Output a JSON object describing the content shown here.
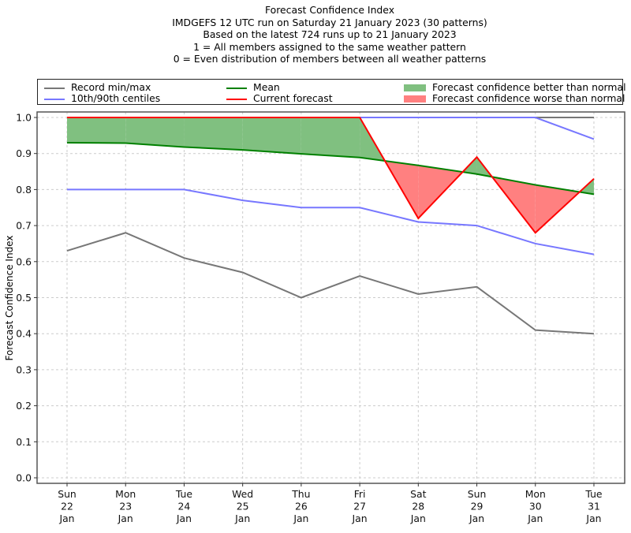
{
  "chart_data": {
    "type": "line",
    "title_lines": [
      "Forecast Confidence Index",
      "IMDGEFS 12 UTC run on Saturday 21 January 2023 (30 patterns)",
      "Based on the latest 724 runs up to 21 January 2023",
      "1 = All members assigned to the same weather pattern",
      "0 = Even distribution of members between all weather patterns"
    ],
    "xlabel": "",
    "ylabel": "Forecast Confidence Index",
    "ylim": [
      0.0,
      1.0
    ],
    "yticks": [
      "0.0",
      "0.1",
      "0.2",
      "0.3",
      "0.4",
      "0.5",
      "0.6",
      "0.7",
      "0.8",
      "0.9",
      "1.0"
    ],
    "grid": true,
    "legend_position": "top, above plot",
    "categories": [
      {
        "day": "Sun",
        "date": "22",
        "month": "Jan"
      },
      {
        "day": "Mon",
        "date": "23",
        "month": "Jan"
      },
      {
        "day": "Tue",
        "date": "24",
        "month": "Jan"
      },
      {
        "day": "Wed",
        "date": "25",
        "month": "Jan"
      },
      {
        "day": "Thu",
        "date": "26",
        "month": "Jan"
      },
      {
        "day": "Fri",
        "date": "27",
        "month": "Jan"
      },
      {
        "day": "Sat",
        "date": "28",
        "month": "Jan"
      },
      {
        "day": "Sun",
        "date": "29",
        "month": "Jan"
      },
      {
        "day": "Mon",
        "date": "30",
        "month": "Jan"
      },
      {
        "day": "Tue",
        "date": "31",
        "month": "Jan"
      }
    ],
    "series": [
      {
        "name": "Record min",
        "color": "#777777",
        "values": [
          0.63,
          0.68,
          0.61,
          0.57,
          0.5,
          0.56,
          0.51,
          0.53,
          0.41,
          0.4
        ]
      },
      {
        "name": "Record max",
        "color": "#777777",
        "values": [
          1.0,
          1.0,
          1.0,
          1.0,
          1.0,
          1.0,
          1.0,
          1.0,
          1.0,
          1.0
        ]
      },
      {
        "name": "10th centile",
        "color": "#7777ff",
        "values": [
          0.8,
          0.8,
          0.8,
          0.77,
          0.75,
          0.75,
          0.71,
          0.7,
          0.65,
          0.62
        ]
      },
      {
        "name": "90th centile",
        "color": "#7777ff",
        "values": [
          1.0,
          1.0,
          1.0,
          1.0,
          1.0,
          1.0,
          1.0,
          1.0,
          1.0,
          0.94
        ]
      },
      {
        "name": "Mean",
        "color": "#008000",
        "values": [
          0.93,
          0.929,
          0.918,
          0.91,
          0.899,
          0.889,
          0.867,
          0.843,
          0.813,
          0.787
        ]
      },
      {
        "name": "Current forecast",
        "color": "#ff0000",
        "values": [
          1.0,
          1.0,
          1.0,
          1.0,
          1.0,
          1.0,
          0.72,
          0.89,
          0.68,
          0.83
        ]
      }
    ],
    "fill_colors": {
      "better": "#80c080",
      "worse": "#ff8080"
    },
    "legend": [
      {
        "label": "Record min/max",
        "kind": "line",
        "color": "#777777"
      },
      {
        "label": "10th/90th centiles",
        "kind": "line",
        "color": "#7777ff"
      },
      {
        "label": "Mean",
        "kind": "line",
        "color": "#008000"
      },
      {
        "label": "Current forecast",
        "kind": "line",
        "color": "#ff0000"
      },
      {
        "label": "Forecast confidence better than normal",
        "kind": "patch",
        "color": "#80c080"
      },
      {
        "label": "Forecast confidence worse than normal",
        "kind": "patch",
        "color": "#ff8080"
      }
    ]
  }
}
